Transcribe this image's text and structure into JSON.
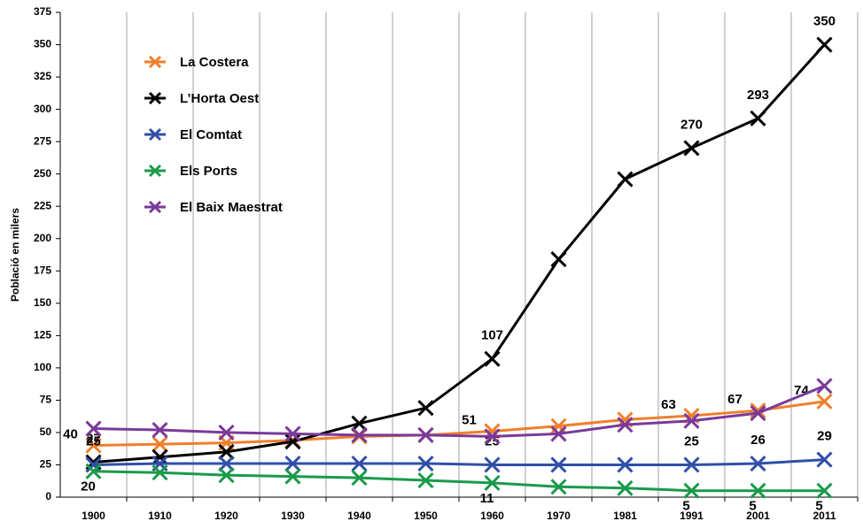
{
  "chart_data": {
    "type": "line",
    "y_label": "Població en milers",
    "categories": [
      "1900",
      "1910",
      "1920",
      "1930",
      "1940",
      "1950",
      "1960",
      "1970",
      "1981",
      "1991",
      "2001",
      "2011"
    ],
    "ylim": [
      0,
      375
    ],
    "yticks": [
      0,
      25,
      50,
      75,
      100,
      125,
      150,
      175,
      200,
      225,
      250,
      275,
      300,
      325,
      350,
      375
    ],
    "grid": "vertical",
    "legend": "upper left",
    "series": [
      {
        "name": "La Costera",
        "color": "#f07f2a",
        "values": [
          40,
          41,
          42,
          44,
          47,
          48,
          51,
          55,
          60,
          63,
          67,
          74
        ],
        "data_labels": [
          true,
          false,
          false,
          false,
          false,
          false,
          true,
          false,
          false,
          true,
          true,
          true
        ],
        "label_position": "left"
      },
      {
        "name": "L’Horta Oest",
        "color": "#000000",
        "values": [
          27,
          31,
          35,
          43,
          57,
          69,
          107,
          184,
          246,
          270,
          293,
          350
        ],
        "data_labels": [
          true,
          false,
          false,
          false,
          false,
          false,
          true,
          false,
          false,
          true,
          true,
          true
        ],
        "label_position": "above"
      },
      {
        "name": "El Comtat",
        "color": "#2f4fa8",
        "values": [
          25,
          26,
          26,
          26,
          26,
          26,
          25,
          25,
          25,
          25,
          26,
          29
        ],
        "data_labels": [
          true,
          false,
          false,
          false,
          false,
          false,
          true,
          false,
          false,
          true,
          true,
          true
        ],
        "label_position": "above"
      },
      {
        "name": "Els Ports",
        "color": "#1a9a4a",
        "values": [
          20,
          19,
          17,
          16,
          15,
          13,
          11,
          8,
          7,
          5,
          5,
          5
        ],
        "data_labels": [
          true,
          false,
          false,
          false,
          false,
          false,
          true,
          false,
          false,
          true,
          true,
          true
        ],
        "label_position": "below"
      },
      {
        "name": "El Baix Maestrat",
        "color": "#7a3a9a",
        "values": [
          53,
          52,
          50,
          49,
          48,
          48,
          47,
          49,
          56,
          59,
          65,
          86
        ]
      }
    ]
  }
}
